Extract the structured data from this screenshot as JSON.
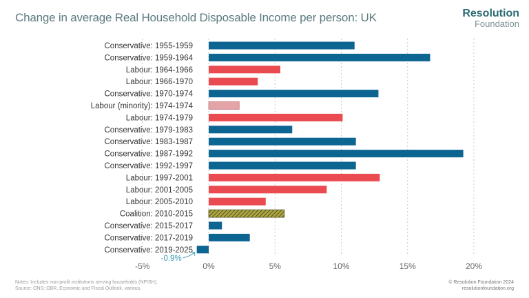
{
  "chart_data": {
    "type": "bar",
    "orientation": "horizontal",
    "title": "Change in average Real Household Disposable Income per person: UK",
    "categories": [
      "Conservative: 1955-1959",
      "Conservative: 1959-1964",
      "Labour: 1964-1966",
      "Labour: 1966-1970",
      "Conservative: 1970-1974",
      "Labour (minority): 1974-1974",
      "Labour: 1974-1979",
      "Conservative: 1979-1983",
      "Conservative: 1983-1987",
      "Conservative: 1987-1992",
      "Conservative: 1992-1997",
      "Labour: 1997-2001",
      "Labour: 2001-2005",
      "Labour: 2005-2010",
      "Coalition: 2010-2015",
      "Conservative: 2015-2017",
      "Conservative: 2017-2019",
      "Conservative: 2019-2025"
    ],
    "values": [
      11.0,
      16.7,
      5.4,
      3.7,
      12.8,
      2.3,
      10.1,
      6.3,
      11.1,
      19.2,
      11.1,
      12.9,
      8.9,
      4.3,
      5.7,
      1.0,
      3.1,
      -0.9
    ],
    "party": [
      "con",
      "con",
      "lab",
      "lab",
      "con",
      "labmin",
      "lab",
      "con",
      "con",
      "con",
      "con",
      "lab",
      "lab",
      "lab",
      "coal",
      "con",
      "con",
      "con"
    ],
    "colors": {
      "con": "#0d6591",
      "lab": "#ea4b50",
      "labmin": "#e4a4a7",
      "coal": "#a99a3a",
      "grid": "#c8c8c8",
      "annotation": "#3a9bb0"
    },
    "xlim": [
      -5,
      20
    ],
    "xticks": [
      "-5%",
      "0%",
      "5%",
      "10%",
      "15%",
      "20%"
    ],
    "xtick_values": [
      -5,
      0,
      5,
      10,
      15,
      20
    ],
    "grid": true,
    "annotation": "-0.9%"
  },
  "logo": {
    "line1": "Resolution",
    "line2": "Foundation"
  },
  "notes": {
    "line1": "Notes: Includes non-profit institutions serving households (NPISH).",
    "line2": "Source: ONS; OBR, Economic and Fiscal Outlook, various."
  },
  "copyright": {
    "line1": "© Resolution Foundation 2024",
    "line2": "resolutionfoundation.org"
  }
}
